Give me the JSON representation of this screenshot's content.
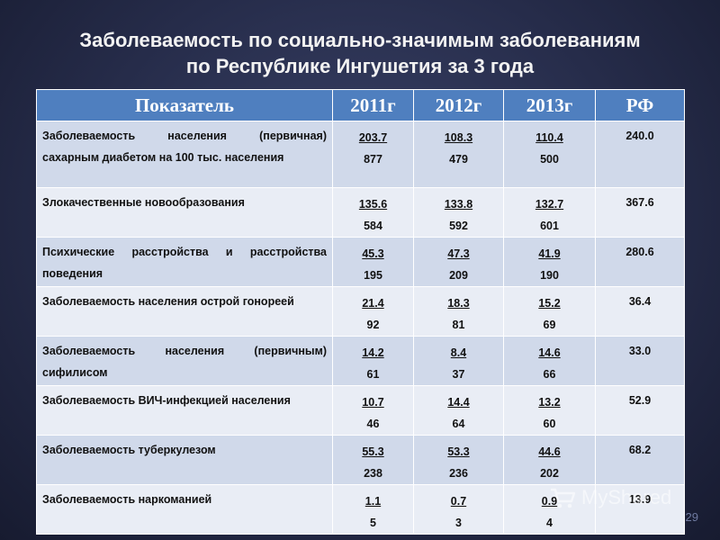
{
  "title": {
    "line1": "Заболеваемость по социально-значимым заболеваниям",
    "line2": "по Республике Ингушетия за 3 года"
  },
  "table": {
    "headers": [
      "Показатель",
      "2011г",
      "2012г",
      "2013г",
      "РФ"
    ],
    "rows": [
      {
        "label": "Заболеваемость населения (первичная) сахарным диабетом на 100 тыс. населения",
        "v2011": "203.7",
        "n2011": "877",
        "v2012": "108.3",
        "n2012": "479",
        "v2013": "110.4",
        "n2013": "500",
        "rf": "240.0"
      },
      {
        "label": "Злокачественные новообразования",
        "v2011": "135.6",
        "n2011": "584",
        "v2012": "133.8",
        "n2012": "592",
        "v2013": "132.7",
        "n2013": "601",
        "rf": "367.6"
      },
      {
        "label": "Психические расстройства и расстройства поведения",
        "v2011": "45.3",
        "n2011": "195",
        "v2012": "47.3",
        "n2012": "209",
        "v2013": "41.9",
        "n2013": "190",
        "rf": "280.6"
      },
      {
        "label": "Заболеваемость населения острой гонореей",
        "v2011": "21.4",
        "n2011": "92",
        "v2012": "18.3",
        "n2012": "81",
        "v2013": "15.2",
        "n2013": "69",
        "rf": "36.4"
      },
      {
        "label": "Заболеваемость населения (первичным) сифилисом",
        "v2011": "14.2",
        "n2011": "61",
        "v2012": "8.4",
        "n2012": "37",
        "v2013": "14.6",
        "n2013": "66",
        "rf": "33.0"
      },
      {
        "label": "Заболеваемость ВИЧ-инфекцией населения",
        "v2011": "10.7",
        "n2011": "46",
        "v2012": "14.4",
        "n2012": "64",
        "v2013": "13.2",
        "n2013": "60",
        "rf": "52.9"
      },
      {
        "label": "Заболеваемость туберкулезом",
        "v2011": "55.3",
        "n2011": "238",
        "v2012": "53.3",
        "n2012": "236",
        "v2013": "44.6",
        "n2013": "202",
        "rf": "68.2"
      },
      {
        "label": "Заболеваемость наркоманией",
        "v2011": "1.1",
        "n2011": "5",
        "v2012": "0.7",
        "n2012": "3",
        "v2013": "0.9",
        "n2013": "4",
        "rf": "13.9"
      }
    ]
  },
  "slide_number": "29",
  "watermark": {
    "text": "MyShared",
    "icon": "shopping-cart-icon"
  },
  "colors": {
    "header_bg": "#4f7fbf",
    "row_odd": "#d0d9ea",
    "row_even": "#e9edf5",
    "background": "#262c4a"
  }
}
